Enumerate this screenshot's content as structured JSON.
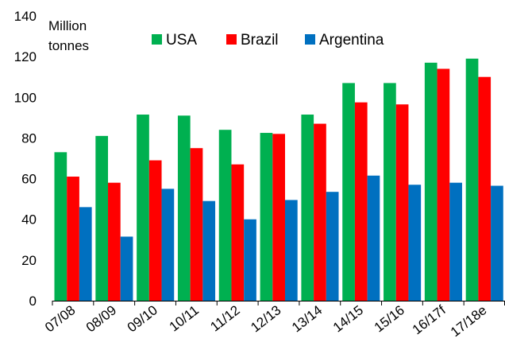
{
  "chart_data": {
    "type": "bar",
    "title": "",
    "xlabel": "",
    "ylabel": "",
    "unit_label": [
      "Million",
      "tonnes"
    ],
    "categories": [
      "07/08",
      "08/09",
      "09/10",
      "10/11",
      "11/12",
      "12/13",
      "13/14",
      "14/15",
      "15/16",
      "16/17f",
      "17/18e"
    ],
    "series": [
      {
        "name": "USA",
        "color": "#00b050",
        "values": [
          73,
          81,
          91.5,
          91,
          84,
          82.5,
          91.5,
          107,
          107,
          117,
          119
        ]
      },
      {
        "name": "Brazil",
        "color": "#ff0000",
        "values": [
          61,
          58,
          69,
          75,
          67,
          82,
          87,
          97.5,
          96.5,
          114,
          110
        ]
      },
      {
        "name": "Argentina",
        "color": "#0070c0",
        "values": [
          46,
          31.5,
          55,
          49,
          40,
          49.5,
          53.5,
          61.5,
          57,
          58,
          56.5
        ]
      }
    ],
    "ylim": [
      0,
      140
    ],
    "yticks": [
      0,
      20,
      40,
      60,
      80,
      100,
      120,
      140
    ],
    "grid": false,
    "legend_position": "top"
  }
}
